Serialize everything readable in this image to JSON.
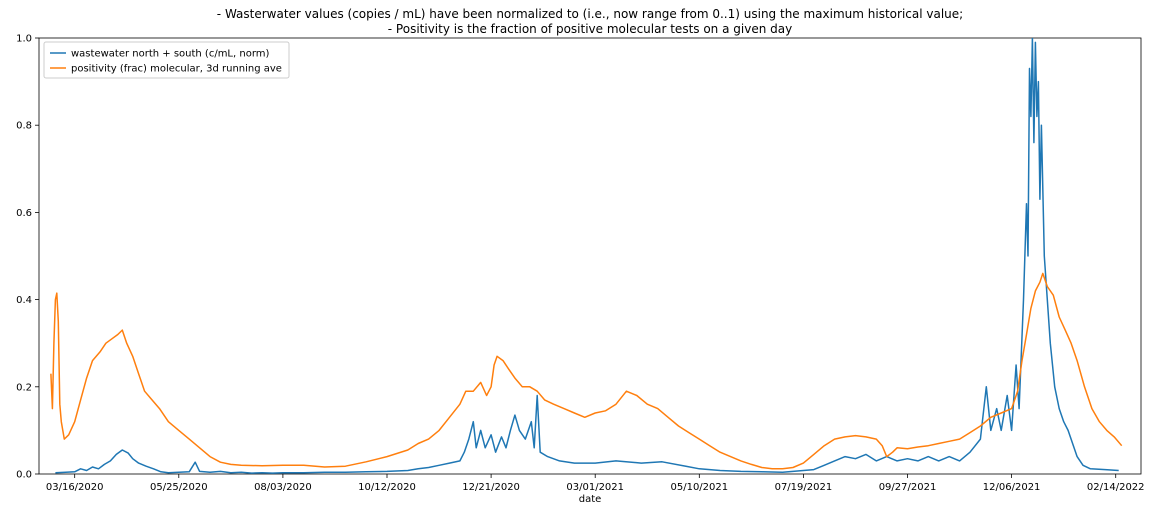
{
  "chart_data": {
    "type": "line",
    "title": [
      "- Wasterwater values (copies / mL) have been normalized to (i.e., now range from 0..1) using the maximum historical value;",
      "- Positivity is the fraction of positive molecular tests on a given day"
    ],
    "xlabel": "date",
    "ylabel": "",
    "xlim": [
      "2020-02-21",
      "2022-03-03"
    ],
    "ylim": [
      0,
      1
    ],
    "x_ticks": [
      "03/16/2020",
      "05/25/2020",
      "08/03/2020",
      "10/12/2020",
      "12/21/2020",
      "03/01/2021",
      "05/10/2021",
      "07/19/2021",
      "09/27/2021",
      "12/06/2021",
      "02/14/2022"
    ],
    "y_ticks": [
      "0.0",
      "0.2",
      "0.4",
      "0.6",
      "0.8",
      "1.0"
    ],
    "legend_position": "top-left",
    "series": [
      {
        "name": "wastewater north + south (c/mL, norm)",
        "color": "#1f77b4",
        "points": [
          [
            "2020-03-03",
            0.003
          ],
          [
            "2020-03-10",
            0.004
          ],
          [
            "2020-03-16",
            0.005
          ],
          [
            "2020-03-20",
            0.012
          ],
          [
            "2020-03-24",
            0.008
          ],
          [
            "2020-03-28",
            0.016
          ],
          [
            "2020-04-01",
            0.012
          ],
          [
            "2020-04-05",
            0.022
          ],
          [
            "2020-04-09",
            0.03
          ],
          [
            "2020-04-13",
            0.045
          ],
          [
            "2020-04-17",
            0.055
          ],
          [
            "2020-04-21",
            0.048
          ],
          [
            "2020-04-24",
            0.035
          ],
          [
            "2020-04-28",
            0.025
          ],
          [
            "2020-05-03",
            0.018
          ],
          [
            "2020-05-08",
            0.012
          ],
          [
            "2020-05-13",
            0.005
          ],
          [
            "2020-05-18",
            0.003
          ],
          [
            "2020-05-25",
            0.004
          ],
          [
            "2020-06-01",
            0.005
          ],
          [
            "2020-06-05",
            0.027
          ],
          [
            "2020-06-08",
            0.006
          ],
          [
            "2020-06-15",
            0.004
          ],
          [
            "2020-06-22",
            0.006
          ],
          [
            "2020-06-29",
            0.003
          ],
          [
            "2020-07-06",
            0.004
          ],
          [
            "2020-07-13",
            0.002
          ],
          [
            "2020-07-20",
            0.003
          ],
          [
            "2020-07-27",
            0.002
          ],
          [
            "2020-08-03",
            0.003
          ],
          [
            "2020-08-17",
            0.003
          ],
          [
            "2020-08-31",
            0.004
          ],
          [
            "2020-09-14",
            0.004
          ],
          [
            "2020-09-28",
            0.005
          ],
          [
            "2020-10-12",
            0.006
          ],
          [
            "2020-10-26",
            0.008
          ],
          [
            "2020-11-02",
            0.012
          ],
          [
            "2020-11-09",
            0.015
          ],
          [
            "2020-11-16",
            0.02
          ],
          [
            "2020-11-23",
            0.025
          ],
          [
            "2020-11-30",
            0.03
          ],
          [
            "2020-12-03",
            0.05
          ],
          [
            "2020-12-06",
            0.08
          ],
          [
            "2020-12-09",
            0.12
          ],
          [
            "2020-12-11",
            0.06
          ],
          [
            "2020-12-14",
            0.1
          ],
          [
            "2020-12-17",
            0.06
          ],
          [
            "2020-12-21",
            0.09
          ],
          [
            "2020-12-24",
            0.05
          ],
          [
            "2020-12-28",
            0.085
          ],
          [
            "2020-12-31",
            0.06
          ],
          [
            "2021-01-03",
            0.1
          ],
          [
            "2021-01-06",
            0.135
          ],
          [
            "2021-01-09",
            0.1
          ],
          [
            "2021-01-13",
            0.08
          ],
          [
            "2021-01-17",
            0.12
          ],
          [
            "2021-01-19",
            0.06
          ],
          [
            "2021-01-21",
            0.18
          ],
          [
            "2021-01-23",
            0.05
          ],
          [
            "2021-01-28",
            0.04
          ],
          [
            "2021-02-05",
            0.03
          ],
          [
            "2021-02-15",
            0.025
          ],
          [
            "2021-03-01",
            0.025
          ],
          [
            "2021-03-15",
            0.03
          ],
          [
            "2021-04-01",
            0.025
          ],
          [
            "2021-04-15",
            0.028
          ],
          [
            "2021-05-01",
            0.018
          ],
          [
            "2021-05-10",
            0.012
          ],
          [
            "2021-05-24",
            0.008
          ],
          [
            "2021-06-07",
            0.006
          ],
          [
            "2021-06-21",
            0.005
          ],
          [
            "2021-07-05",
            0.004
          ],
          [
            "2021-07-19",
            0.008
          ],
          [
            "2021-07-26",
            0.01
          ],
          [
            "2021-08-02",
            0.02
          ],
          [
            "2021-08-09",
            0.03
          ],
          [
            "2021-08-16",
            0.04
          ],
          [
            "2021-08-23",
            0.035
          ],
          [
            "2021-08-30",
            0.045
          ],
          [
            "2021-09-06",
            0.03
          ],
          [
            "2021-09-13",
            0.04
          ],
          [
            "2021-09-20",
            0.03
          ],
          [
            "2021-09-27",
            0.035
          ],
          [
            "2021-10-04",
            0.03
          ],
          [
            "2021-10-11",
            0.04
          ],
          [
            "2021-10-18",
            0.03
          ],
          [
            "2021-10-25",
            0.04
          ],
          [
            "2021-11-01",
            0.03
          ],
          [
            "2021-11-08",
            0.05
          ],
          [
            "2021-11-15",
            0.08
          ],
          [
            "2021-11-19",
            0.2
          ],
          [
            "2021-11-22",
            0.1
          ],
          [
            "2021-11-26",
            0.15
          ],
          [
            "2021-11-29",
            0.1
          ],
          [
            "2021-12-03",
            0.18
          ],
          [
            "2021-12-06",
            0.1
          ],
          [
            "2021-12-09",
            0.25
          ],
          [
            "2021-12-11",
            0.15
          ],
          [
            "2021-12-14",
            0.4
          ],
          [
            "2021-12-16",
            0.62
          ],
          [
            "2021-12-17",
            0.5
          ],
          [
            "2021-12-18",
            0.93
          ],
          [
            "2021-12-19",
            0.82
          ],
          [
            "2021-12-20",
            1.0
          ],
          [
            "2021-12-21",
            0.76
          ],
          [
            "2021-12-22",
            0.99
          ],
          [
            "2021-12-23",
            0.82
          ],
          [
            "2021-12-24",
            0.9
          ],
          [
            "2021-12-25",
            0.63
          ],
          [
            "2021-12-26",
            0.8
          ],
          [
            "2021-12-28",
            0.5
          ],
          [
            "2021-12-30",
            0.4
          ],
          [
            "2022-01-01",
            0.3
          ],
          [
            "2022-01-04",
            0.2
          ],
          [
            "2022-01-07",
            0.15
          ],
          [
            "2022-01-10",
            0.12
          ],
          [
            "2022-01-13",
            0.1
          ],
          [
            "2022-01-16",
            0.07
          ],
          [
            "2022-01-19",
            0.04
          ],
          [
            "2022-01-23",
            0.02
          ],
          [
            "2022-01-28",
            0.012
          ],
          [
            "2022-02-07",
            0.01
          ],
          [
            "2022-02-16",
            0.008
          ]
        ]
      },
      {
        "name": "positivity (frac) molecular, 3d running ave",
        "color": "#ff7f0e",
        "points": [
          [
            "2020-02-29",
            0.23
          ],
          [
            "2020-03-01",
            0.15
          ],
          [
            "2020-03-02",
            0.3
          ],
          [
            "2020-03-03",
            0.4
          ],
          [
            "2020-03-04",
            0.415
          ],
          [
            "2020-03-05",
            0.35
          ],
          [
            "2020-03-06",
            0.16
          ],
          [
            "2020-03-07",
            0.12
          ],
          [
            "2020-03-09",
            0.08
          ],
          [
            "2020-03-12",
            0.09
          ],
          [
            "2020-03-16",
            0.12
          ],
          [
            "2020-03-20",
            0.17
          ],
          [
            "2020-03-24",
            0.22
          ],
          [
            "2020-03-28",
            0.26
          ],
          [
            "2020-04-02",
            0.28
          ],
          [
            "2020-04-06",
            0.3
          ],
          [
            "2020-04-10",
            0.31
          ],
          [
            "2020-04-14",
            0.32
          ],
          [
            "2020-04-17",
            0.33
          ],
          [
            "2020-04-20",
            0.3
          ],
          [
            "2020-04-24",
            0.27
          ],
          [
            "2020-04-28",
            0.23
          ],
          [
            "2020-05-02",
            0.19
          ],
          [
            "2020-05-07",
            0.17
          ],
          [
            "2020-05-12",
            0.15
          ],
          [
            "2020-05-18",
            0.12
          ],
          [
            "2020-05-25",
            0.1
          ],
          [
            "2020-06-01",
            0.08
          ],
          [
            "2020-06-08",
            0.06
          ],
          [
            "2020-06-15",
            0.04
          ],
          [
            "2020-06-22",
            0.027
          ],
          [
            "2020-06-29",
            0.022
          ],
          [
            "2020-07-06",
            0.02
          ],
          [
            "2020-07-20",
            0.019
          ],
          [
            "2020-08-03",
            0.02
          ],
          [
            "2020-08-17",
            0.02
          ],
          [
            "2020-08-31",
            0.016
          ],
          [
            "2020-09-14",
            0.018
          ],
          [
            "2020-09-28",
            0.028
          ],
          [
            "2020-10-12",
            0.04
          ],
          [
            "2020-10-26",
            0.055
          ],
          [
            "2020-11-02",
            0.07
          ],
          [
            "2020-11-09",
            0.08
          ],
          [
            "2020-11-16",
            0.1
          ],
          [
            "2020-11-23",
            0.13
          ],
          [
            "2020-11-30",
            0.16
          ],
          [
            "2020-12-04",
            0.19
          ],
          [
            "2020-12-09",
            0.19
          ],
          [
            "2020-12-14",
            0.21
          ],
          [
            "2020-12-18",
            0.18
          ],
          [
            "2020-12-21",
            0.2
          ],
          [
            "2020-12-23",
            0.25
          ],
          [
            "2020-12-25",
            0.27
          ],
          [
            "2020-12-29",
            0.26
          ],
          [
            "2021-01-02",
            0.24
          ],
          [
            "2021-01-06",
            0.22
          ],
          [
            "2021-01-11",
            0.2
          ],
          [
            "2021-01-16",
            0.2
          ],
          [
            "2021-01-21",
            0.19
          ],
          [
            "2021-01-26",
            0.17
          ],
          [
            "2021-02-01",
            0.16
          ],
          [
            "2021-02-08",
            0.15
          ],
          [
            "2021-02-15",
            0.14
          ],
          [
            "2021-02-22",
            0.13
          ],
          [
            "2021-03-01",
            0.14
          ],
          [
            "2021-03-08",
            0.145
          ],
          [
            "2021-03-15",
            0.16
          ],
          [
            "2021-03-22",
            0.19
          ],
          [
            "2021-03-29",
            0.18
          ],
          [
            "2021-04-05",
            0.16
          ],
          [
            "2021-04-12",
            0.15
          ],
          [
            "2021-04-19",
            0.13
          ],
          [
            "2021-04-26",
            0.11
          ],
          [
            "2021-05-03",
            0.095
          ],
          [
            "2021-05-10",
            0.08
          ],
          [
            "2021-05-17",
            0.065
          ],
          [
            "2021-05-24",
            0.05
          ],
          [
            "2021-05-31",
            0.04
          ],
          [
            "2021-06-07",
            0.03
          ],
          [
            "2021-06-14",
            0.022
          ],
          [
            "2021-06-21",
            0.015
          ],
          [
            "2021-06-28",
            0.012
          ],
          [
            "2021-07-05",
            0.012
          ],
          [
            "2021-07-12",
            0.015
          ],
          [
            "2021-07-19",
            0.025
          ],
          [
            "2021-07-26",
            0.045
          ],
          [
            "2021-08-02",
            0.065
          ],
          [
            "2021-08-09",
            0.08
          ],
          [
            "2021-08-16",
            0.085
          ],
          [
            "2021-08-23",
            0.088
          ],
          [
            "2021-08-30",
            0.085
          ],
          [
            "2021-09-06",
            0.08
          ],
          [
            "2021-09-10",
            0.065
          ],
          [
            "2021-09-13",
            0.04
          ],
          [
            "2021-09-17",
            0.05
          ],
          [
            "2021-09-20",
            0.06
          ],
          [
            "2021-09-27",
            0.058
          ],
          [
            "2021-10-04",
            0.062
          ],
          [
            "2021-10-11",
            0.065
          ],
          [
            "2021-10-18",
            0.07
          ],
          [
            "2021-10-25",
            0.075
          ],
          [
            "2021-11-01",
            0.08
          ],
          [
            "2021-11-08",
            0.095
          ],
          [
            "2021-11-15",
            0.11
          ],
          [
            "2021-11-22",
            0.13
          ],
          [
            "2021-11-29",
            0.14
          ],
          [
            "2021-12-06",
            0.15
          ],
          [
            "2021-12-10",
            0.19
          ],
          [
            "2021-12-13",
            0.26
          ],
          [
            "2021-12-16",
            0.32
          ],
          [
            "2021-12-19",
            0.38
          ],
          [
            "2021-12-22",
            0.42
          ],
          [
            "2021-12-25",
            0.44
          ],
          [
            "2021-12-27",
            0.46
          ],
          [
            "2021-12-30",
            0.43
          ],
          [
            "2022-01-03",
            0.41
          ],
          [
            "2022-01-07",
            0.36
          ],
          [
            "2022-01-11",
            0.33
          ],
          [
            "2022-01-15",
            0.3
          ],
          [
            "2022-01-19",
            0.26
          ],
          [
            "2022-01-24",
            0.2
          ],
          [
            "2022-01-29",
            0.15
          ],
          [
            "2022-02-03",
            0.12
          ],
          [
            "2022-02-08",
            0.1
          ],
          [
            "2022-02-13",
            0.085
          ],
          [
            "2022-02-18",
            0.065
          ]
        ]
      }
    ]
  }
}
